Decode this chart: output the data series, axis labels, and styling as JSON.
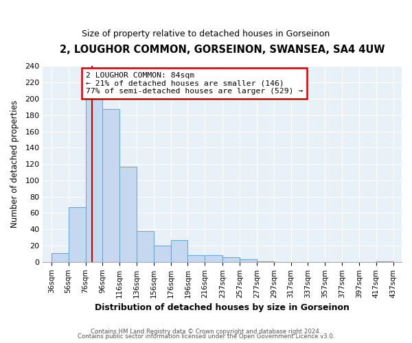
{
  "title": "2, LOUGHOR COMMON, GORSEINON, SWANSEA, SA4 4UW",
  "subtitle": "Size of property relative to detached houses in Gorseinon",
  "xlabel": "Distribution of detached houses by size in Gorseinon",
  "ylabel": "Number of detached properties",
  "bar_edges": [
    36,
    56,
    76,
    96,
    116,
    136,
    156,
    176,
    196,
    216,
    237,
    257,
    277,
    297,
    317,
    337,
    357,
    377,
    397,
    417,
    437
  ],
  "bar_heights": [
    11,
    67,
    200,
    187,
    117,
    38,
    20,
    27,
    8,
    8,
    6,
    3,
    1,
    0,
    0,
    0,
    0,
    0,
    0,
    1
  ],
  "bar_color": "#c5d8f0",
  "bar_edge_color": "#6aaad4",
  "red_line_x": 84,
  "annotation_title": "2 LOUGHOR COMMON: 84sqm",
  "annotation_line1": "← 21% of detached houses are smaller (146)",
  "annotation_line2": "77% of semi-detached houses are larger (529) →",
  "annotation_box_color": "#ffffff",
  "annotation_box_edge": "#cc0000",
  "red_line_color": "#cc0000",
  "ylim": [
    0,
    240
  ],
  "yticks": [
    0,
    20,
    40,
    60,
    80,
    100,
    120,
    140,
    160,
    180,
    200,
    220,
    240
  ],
  "footer1": "Contains HM Land Registry data © Crown copyright and database right 2024.",
  "footer2": "Contains public sector information licensed under the Open Government Licence v3.0.",
  "bg_color": "#e8f0f8"
}
